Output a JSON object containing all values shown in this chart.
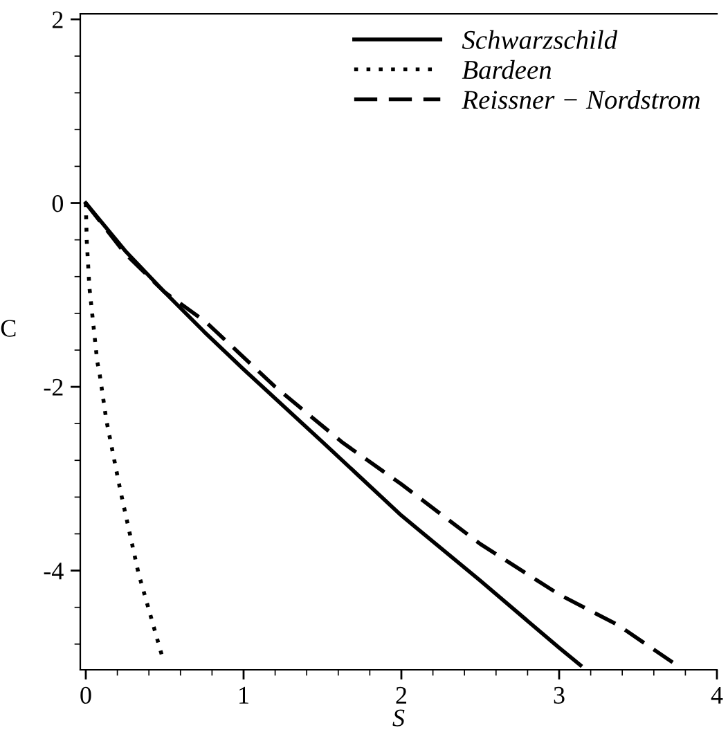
{
  "chart_data": {
    "type": "line",
    "xlabel": "S",
    "ylabel": "C",
    "xlim": [
      -0.035,
      4.0
    ],
    "ylim": [
      -5.08,
      2.06
    ],
    "xticks": [
      0,
      1,
      2,
      3,
      4
    ],
    "yticks": [
      -4,
      -2,
      0,
      2
    ],
    "grid": false,
    "legend": "top right",
    "marker": "none",
    "series": [
      {
        "name": "Schwarzschild",
        "color": "#000000",
        "line_style": "solid",
        "x": [
          0,
          0.25,
          0.5,
          0.75,
          1,
          1.5,
          2,
          2.5,
          3,
          3.135
        ],
        "values": [
          0,
          -0.52,
          -0.97,
          -1.4,
          -1.81,
          -2.6,
          -3.4,
          -4.11,
          -4.84,
          -5.03
        ]
      },
      {
        "name": "Bardeen",
        "color": "#000000",
        "line_style": "dotted",
        "x": [
          0,
          0.006,
          0.023,
          0.073,
          0.087,
          0.13,
          0.218,
          0.334,
          0.485
        ],
        "values": [
          0,
          -0.41,
          -0.92,
          -1.73,
          -1.85,
          -2.36,
          -3.12,
          -4.03,
          -4.94
        ]
      },
      {
        "name": "Reissner − Nordstrom",
        "color": "#000000",
        "line_style": "dashed",
        "x": [
          0,
          0.25,
          0.5,
          0.765,
          1.2,
          1.63,
          2,
          2.5,
          3,
          3.37,
          3.72
        ],
        "values": [
          0,
          -0.55,
          -0.97,
          -1.3,
          -2.0,
          -2.61,
          -3.06,
          -3.71,
          -4.26,
          -4.59,
          -5.0
        ]
      }
    ]
  }
}
